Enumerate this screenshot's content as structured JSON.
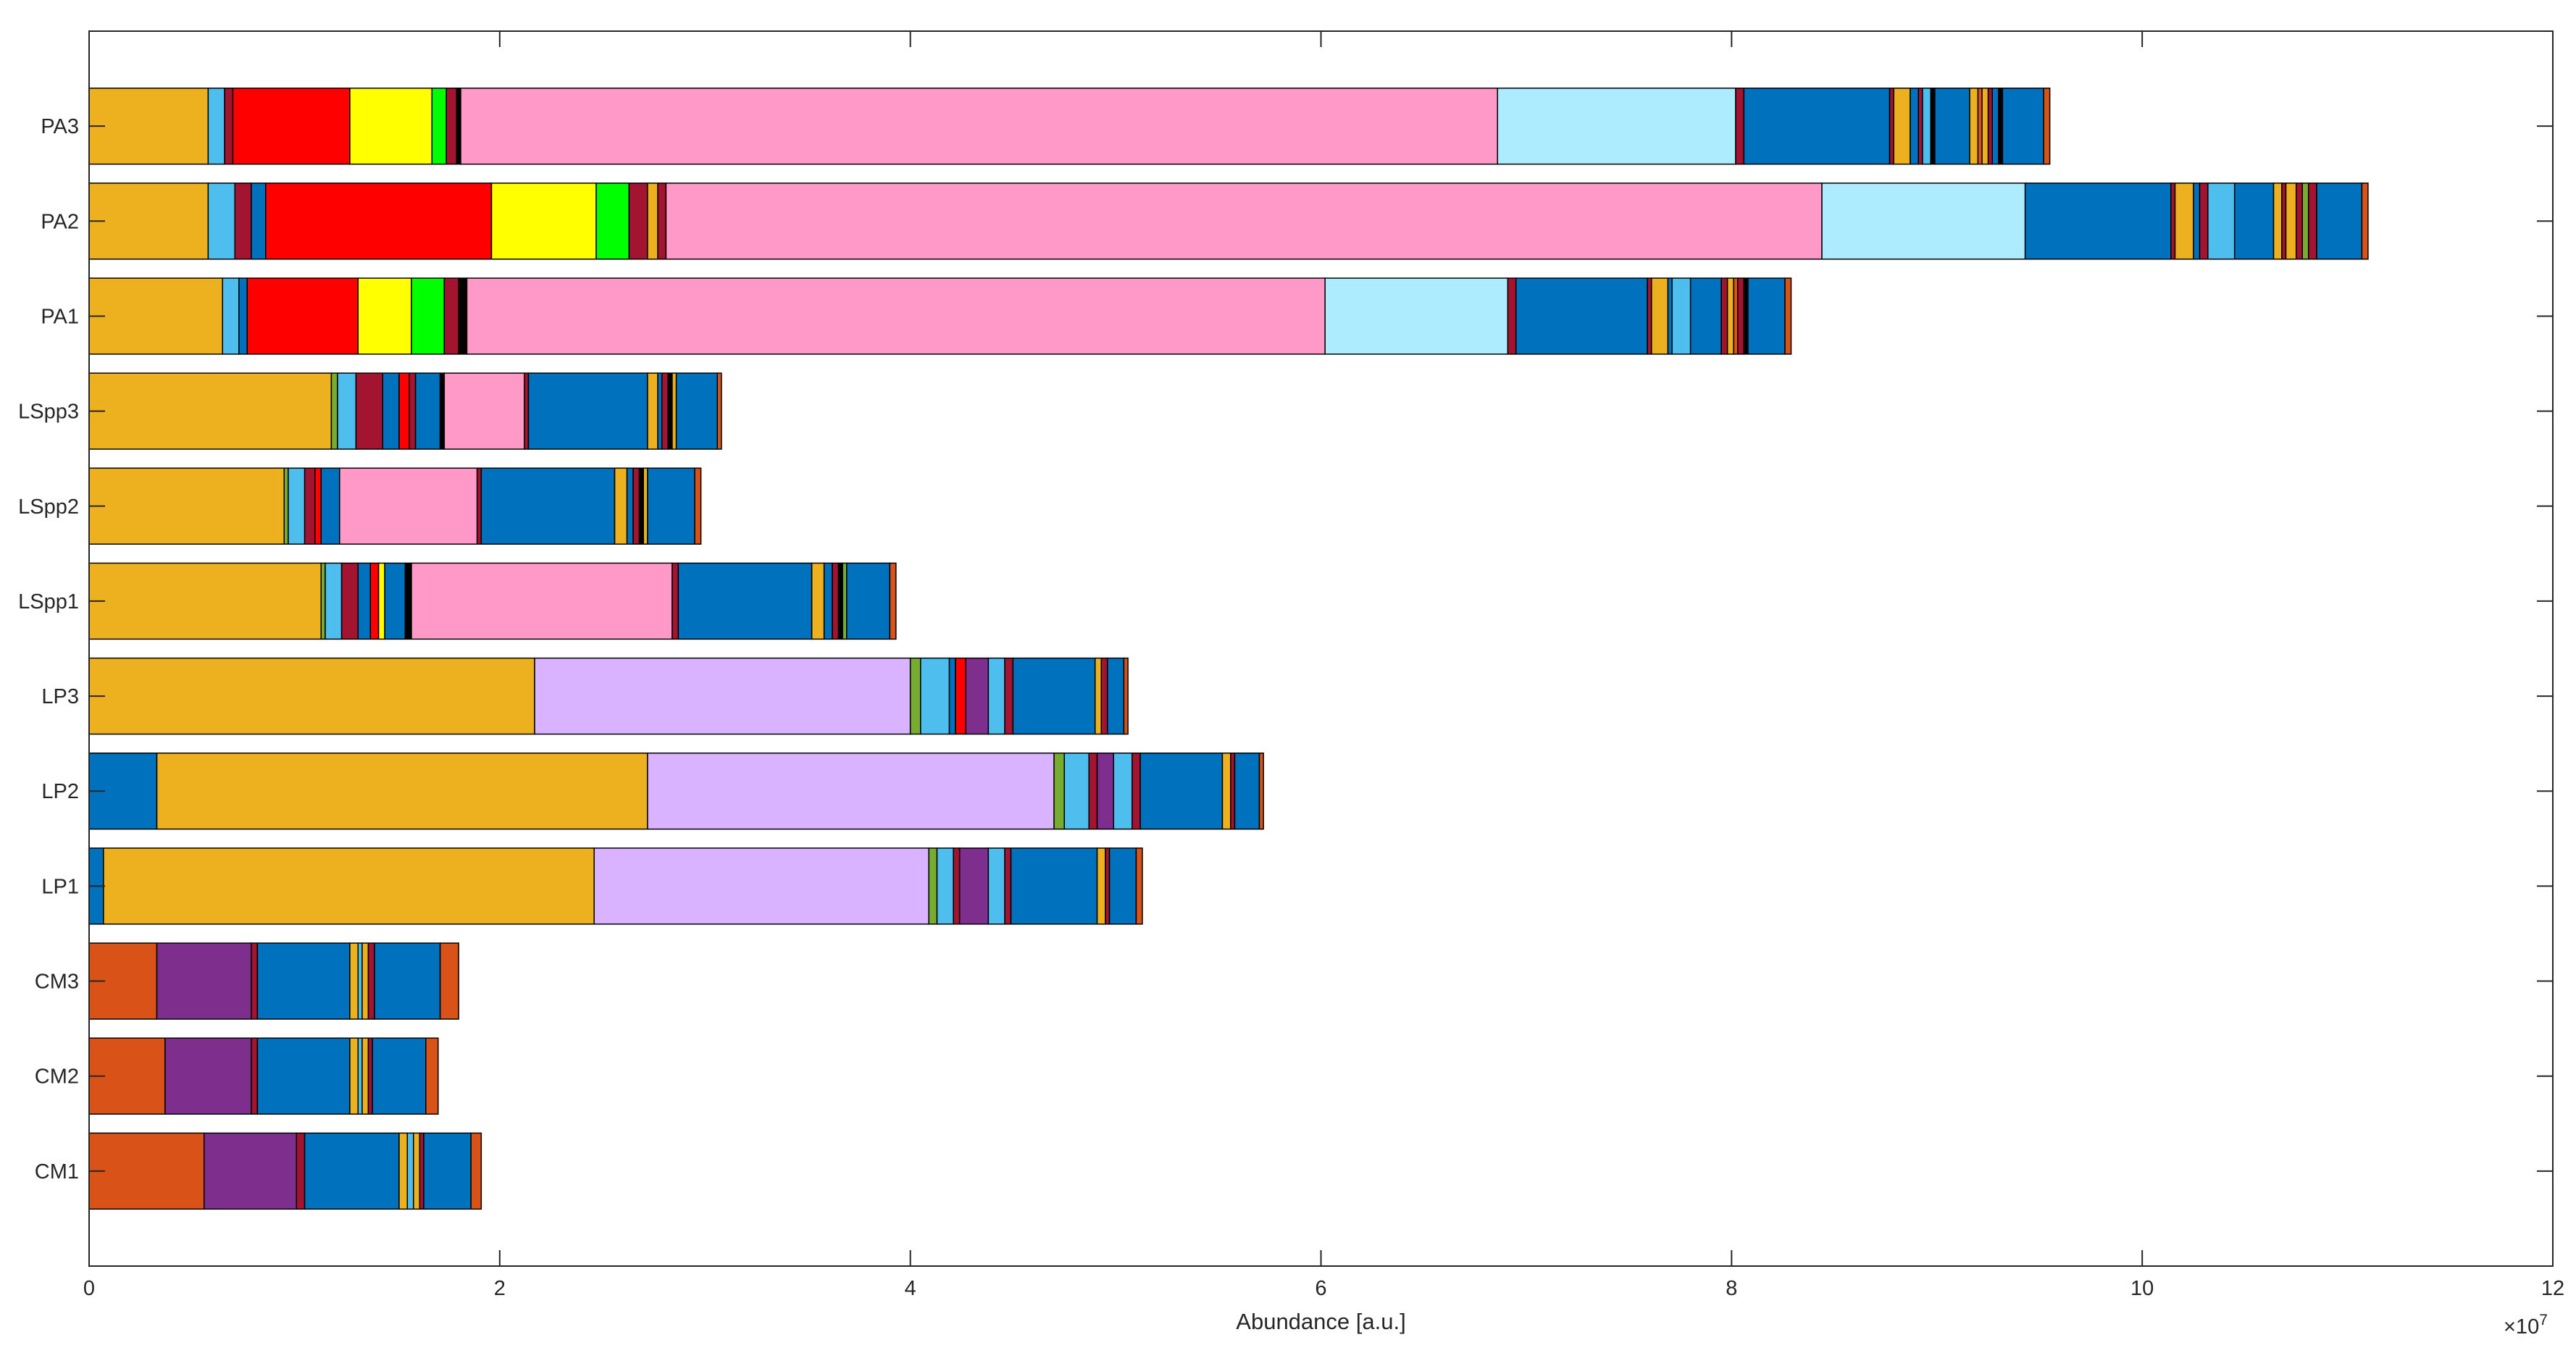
{
  "chart_data": {
    "type": "bar",
    "orientation": "horizontal",
    "stacked": true,
    "xlabel": "Abundance [a.u.]",
    "x_exponent_label": {
      "base": "×10",
      "power": "7"
    },
    "xlim": [
      0,
      12
    ],
    "x_ticks": [
      0,
      2,
      4,
      6,
      8,
      10,
      12
    ],
    "grid": false,
    "legend": "none",
    "categories": [
      "PA3",
      "PA2",
      "PA1",
      "LSpp3",
      "LSpp2",
      "LSpp1",
      "LP3",
      "LP2",
      "LP1",
      "CM3",
      "CM2",
      "CM1"
    ],
    "colors": {
      "orange": "#EDB120",
      "light_blue": "#4DBEEE",
      "maroon": "#A2142F",
      "red": "#FF0000",
      "yellow": "#FFFF00",
      "green": "#00FF00",
      "pink": "#FF99C8",
      "sky": "#ADEBFF",
      "blue": "#0072BD",
      "olive": "#77AC30",
      "dark_orange": "#D95319",
      "purple": "#7E2F8E",
      "lavender": "#D9B3FF",
      "black": "#000000"
    },
    "series_by_category": [
      {
        "name": "PA3",
        "segments": [
          {
            "value": 0.58,
            "color": "orange"
          },
          {
            "value": 0.08,
            "color": "light_blue"
          },
          {
            "value": 0.04,
            "color": "maroon"
          },
          {
            "value": 0.57,
            "color": "red"
          },
          {
            "value": 0.4,
            "color": "yellow"
          },
          {
            "value": 0.07,
            "color": "green"
          },
          {
            "value": 0.05,
            "color": "maroon"
          },
          {
            "value": 0.02,
            "color": "black"
          },
          {
            "value": 5.05,
            "color": "pink"
          },
          {
            "value": 1.16,
            "color": "sky"
          },
          {
            "value": 0.04,
            "color": "maroon"
          },
          {
            "value": 0.71,
            "color": "blue"
          },
          {
            "value": 0.02,
            "color": "maroon"
          },
          {
            "value": 0.08,
            "color": "orange"
          },
          {
            "value": 0.04,
            "color": "blue"
          },
          {
            "value": 0.02,
            "color": "maroon"
          },
          {
            "value": 0.04,
            "color": "light_blue"
          },
          {
            "value": 0.02,
            "color": "black"
          },
          {
            "value": 0.17,
            "color": "blue"
          },
          {
            "value": 0.04,
            "color": "orange"
          },
          {
            "value": 0.02,
            "color": "dark_orange"
          },
          {
            "value": 0.03,
            "color": "orange"
          },
          {
            "value": 0.02,
            "color": "maroon"
          },
          {
            "value": 0.03,
            "color": "blue"
          },
          {
            "value": 0.02,
            "color": "black"
          },
          {
            "value": 0.2,
            "color": "blue"
          },
          {
            "value": 0.03,
            "color": "dark_orange"
          }
        ]
      },
      {
        "name": "PA2",
        "segments": [
          {
            "value": 0.58,
            "color": "orange"
          },
          {
            "value": 0.13,
            "color": "light_blue"
          },
          {
            "value": 0.08,
            "color": "maroon"
          },
          {
            "value": 0.07,
            "color": "blue"
          },
          {
            "value": 1.1,
            "color": "red"
          },
          {
            "value": 0.51,
            "color": "yellow"
          },
          {
            "value": 0.16,
            "color": "green"
          },
          {
            "value": 0.09,
            "color": "maroon"
          },
          {
            "value": 0.05,
            "color": "orange"
          },
          {
            "value": 0.04,
            "color": "maroon"
          },
          {
            "value": 5.63,
            "color": "pink"
          },
          {
            "value": 0.99,
            "color": "sky"
          },
          {
            "value": 0.71,
            "color": "blue"
          },
          {
            "value": 0.02,
            "color": "maroon"
          },
          {
            "value": 0.09,
            "color": "orange"
          },
          {
            "value": 0.03,
            "color": "blue"
          },
          {
            "value": 0.04,
            "color": "maroon"
          },
          {
            "value": 0.13,
            "color": "light_blue"
          },
          {
            "value": 0.19,
            "color": "blue"
          },
          {
            "value": 0.04,
            "color": "orange"
          },
          {
            "value": 0.02,
            "color": "maroon"
          },
          {
            "value": 0.05,
            "color": "orange"
          },
          {
            "value": 0.03,
            "color": "maroon"
          },
          {
            "value": 0.03,
            "color": "olive"
          },
          {
            "value": 0.04,
            "color": "maroon"
          },
          {
            "value": 0.22,
            "color": "blue"
          },
          {
            "value": 0.03,
            "color": "dark_orange"
          }
        ]
      },
      {
        "name": "PA1",
        "segments": [
          {
            "value": 0.65,
            "color": "orange"
          },
          {
            "value": 0.08,
            "color": "light_blue"
          },
          {
            "value": 0.04,
            "color": "blue"
          },
          {
            "value": 0.54,
            "color": "red"
          },
          {
            "value": 0.26,
            "color": "yellow"
          },
          {
            "value": 0.16,
            "color": "green"
          },
          {
            "value": 0.07,
            "color": "maroon"
          },
          {
            "value": 0.04,
            "color": "black"
          },
          {
            "value": 4.18,
            "color": "pink"
          },
          {
            "value": 0.89,
            "color": "sky"
          },
          {
            "value": 0.04,
            "color": "maroon"
          },
          {
            "value": 0.64,
            "color": "blue"
          },
          {
            "value": 0.02,
            "color": "maroon"
          },
          {
            "value": 0.08,
            "color": "orange"
          },
          {
            "value": 0.02,
            "color": "blue"
          },
          {
            "value": 0.09,
            "color": "light_blue"
          },
          {
            "value": 0.15,
            "color": "blue"
          },
          {
            "value": 0.03,
            "color": "maroon"
          },
          {
            "value": 0.03,
            "color": "orange"
          },
          {
            "value": 0.02,
            "color": "dark_orange"
          },
          {
            "value": 0.03,
            "color": "maroon"
          },
          {
            "value": 0.02,
            "color": "black"
          },
          {
            "value": 0.18,
            "color": "blue"
          },
          {
            "value": 0.03,
            "color": "dark_orange"
          }
        ]
      },
      {
        "name": "LSpp3",
        "segments": [
          {
            "value": 1.18,
            "color": "orange"
          },
          {
            "value": 0.03,
            "color": "olive"
          },
          {
            "value": 0.09,
            "color": "light_blue"
          },
          {
            "value": 0.13,
            "color": "maroon"
          },
          {
            "value": 0.08,
            "color": "blue"
          },
          {
            "value": 0.05,
            "color": "red"
          },
          {
            "value": 0.03,
            "color": "maroon"
          },
          {
            "value": 0.12,
            "color": "blue"
          },
          {
            "value": 0.02,
            "color": "black"
          },
          {
            "value": 0.39,
            "color": "pink"
          },
          {
            "value": 0.02,
            "color": "maroon"
          },
          {
            "value": 0.58,
            "color": "blue"
          },
          {
            "value": 0.05,
            "color": "orange"
          },
          {
            "value": 0.02,
            "color": "blue"
          },
          {
            "value": 0.03,
            "color": "maroon"
          },
          {
            "value": 0.02,
            "color": "black"
          },
          {
            "value": 0.02,
            "color": "orange"
          },
          {
            "value": 0.2,
            "color": "blue"
          },
          {
            "value": 0.02,
            "color": "dark_orange"
          }
        ]
      },
      {
        "name": "LSpp2",
        "segments": [
          {
            "value": 0.95,
            "color": "orange"
          },
          {
            "value": 0.02,
            "color": "olive"
          },
          {
            "value": 0.08,
            "color": "light_blue"
          },
          {
            "value": 0.05,
            "color": "maroon"
          },
          {
            "value": 0.03,
            "color": "red"
          },
          {
            "value": 0.09,
            "color": "blue"
          },
          {
            "value": 0.67,
            "color": "pink"
          },
          {
            "value": 0.02,
            "color": "maroon"
          },
          {
            "value": 0.65,
            "color": "blue"
          },
          {
            "value": 0.06,
            "color": "orange"
          },
          {
            "value": 0.03,
            "color": "blue"
          },
          {
            "value": 0.03,
            "color": "maroon"
          },
          {
            "value": 0.02,
            "color": "black"
          },
          {
            "value": 0.02,
            "color": "orange"
          },
          {
            "value": 0.23,
            "color": "blue"
          },
          {
            "value": 0.03,
            "color": "dark_orange"
          }
        ]
      },
      {
        "name": "LSpp1",
        "segments": [
          {
            "value": 1.13,
            "color": "orange"
          },
          {
            "value": 0.02,
            "color": "olive"
          },
          {
            "value": 0.08,
            "color": "light_blue"
          },
          {
            "value": 0.08,
            "color": "maroon"
          },
          {
            "value": 0.06,
            "color": "blue"
          },
          {
            "value": 0.04,
            "color": "red"
          },
          {
            "value": 0.03,
            "color": "yellow"
          },
          {
            "value": 0.1,
            "color": "blue"
          },
          {
            "value": 0.03,
            "color": "black"
          },
          {
            "value": 1.27,
            "color": "pink"
          },
          {
            "value": 0.03,
            "color": "maroon"
          },
          {
            "value": 0.65,
            "color": "blue"
          },
          {
            "value": 0.06,
            "color": "orange"
          },
          {
            "value": 0.04,
            "color": "blue"
          },
          {
            "value": 0.03,
            "color": "maroon"
          },
          {
            "value": 0.02,
            "color": "black"
          },
          {
            "value": 0.02,
            "color": "olive"
          },
          {
            "value": 0.21,
            "color": "blue"
          },
          {
            "value": 0.03,
            "color": "dark_orange"
          }
        ]
      },
      {
        "name": "LP3",
        "segments": [
          {
            "value": 2.17,
            "color": "orange"
          },
          {
            "value": 1.83,
            "color": "lavender"
          },
          {
            "value": 0.05,
            "color": "olive"
          },
          {
            "value": 0.14,
            "color": "light_blue"
          },
          {
            "value": 0.03,
            "color": "blue"
          },
          {
            "value": 0.05,
            "color": "red"
          },
          {
            "value": 0.11,
            "color": "purple"
          },
          {
            "value": 0.08,
            "color": "light_blue"
          },
          {
            "value": 0.04,
            "color": "maroon"
          },
          {
            "value": 0.4,
            "color": "blue"
          },
          {
            "value": 0.03,
            "color": "orange"
          },
          {
            "value": 0.03,
            "color": "maroon"
          },
          {
            "value": 0.08,
            "color": "blue"
          },
          {
            "value": 0.02,
            "color": "dark_orange"
          }
        ]
      },
      {
        "name": "LP2",
        "segments": [
          {
            "value": 0.33,
            "color": "blue"
          },
          {
            "value": 2.39,
            "color": "orange"
          },
          {
            "value": 1.98,
            "color": "lavender"
          },
          {
            "value": 0.05,
            "color": "olive"
          },
          {
            "value": 0.12,
            "color": "light_blue"
          },
          {
            "value": 0.04,
            "color": "maroon"
          },
          {
            "value": 0.08,
            "color": "purple"
          },
          {
            "value": 0.09,
            "color": "light_blue"
          },
          {
            "value": 0.04,
            "color": "maroon"
          },
          {
            "value": 0.4,
            "color": "blue"
          },
          {
            "value": 0.04,
            "color": "orange"
          },
          {
            "value": 0.02,
            "color": "maroon"
          },
          {
            "value": 0.12,
            "color": "blue"
          },
          {
            "value": 0.02,
            "color": "dark_orange"
          }
        ]
      },
      {
        "name": "LP1",
        "segments": [
          {
            "value": 0.07,
            "color": "blue"
          },
          {
            "value": 2.39,
            "color": "orange"
          },
          {
            "value": 1.63,
            "color": "lavender"
          },
          {
            "value": 0.04,
            "color": "olive"
          },
          {
            "value": 0.08,
            "color": "light_blue"
          },
          {
            "value": 0.03,
            "color": "maroon"
          },
          {
            "value": 0.14,
            "color": "purple"
          },
          {
            "value": 0.08,
            "color": "light_blue"
          },
          {
            "value": 0.03,
            "color": "maroon"
          },
          {
            "value": 0.42,
            "color": "blue"
          },
          {
            "value": 0.04,
            "color": "orange"
          },
          {
            "value": 0.02,
            "color": "maroon"
          },
          {
            "value": 0.13,
            "color": "blue"
          },
          {
            "value": 0.03,
            "color": "dark_orange"
          }
        ]
      },
      {
        "name": "CM3",
        "segments": [
          {
            "value": 0.33,
            "color": "dark_orange"
          },
          {
            "value": 0.46,
            "color": "purple"
          },
          {
            "value": 0.03,
            "color": "maroon"
          },
          {
            "value": 0.45,
            "color": "blue"
          },
          {
            "value": 0.04,
            "color": "orange"
          },
          {
            "value": 0.02,
            "color": "light_blue"
          },
          {
            "value": 0.03,
            "color": "orange"
          },
          {
            "value": 0.03,
            "color": "maroon"
          },
          {
            "value": 0.32,
            "color": "blue"
          },
          {
            "value": 0.09,
            "color": "dark_orange"
          }
        ]
      },
      {
        "name": "CM2",
        "segments": [
          {
            "value": 0.37,
            "color": "dark_orange"
          },
          {
            "value": 0.42,
            "color": "purple"
          },
          {
            "value": 0.03,
            "color": "maroon"
          },
          {
            "value": 0.45,
            "color": "blue"
          },
          {
            "value": 0.04,
            "color": "orange"
          },
          {
            "value": 0.02,
            "color": "light_blue"
          },
          {
            "value": 0.03,
            "color": "orange"
          },
          {
            "value": 0.02,
            "color": "maroon"
          },
          {
            "value": 0.26,
            "color": "blue"
          },
          {
            "value": 0.06,
            "color": "dark_orange"
          }
        ]
      },
      {
        "name": "CM1",
        "segments": [
          {
            "value": 0.56,
            "color": "dark_orange"
          },
          {
            "value": 0.45,
            "color": "purple"
          },
          {
            "value": 0.04,
            "color": "maroon"
          },
          {
            "value": 0.46,
            "color": "blue"
          },
          {
            "value": 0.04,
            "color": "orange"
          },
          {
            "value": 0.03,
            "color": "light_blue"
          },
          {
            "value": 0.03,
            "color": "orange"
          },
          {
            "value": 0.02,
            "color": "maroon"
          },
          {
            "value": 0.23,
            "color": "blue"
          },
          {
            "value": 0.05,
            "color": "dark_orange"
          }
        ]
      }
    ]
  }
}
